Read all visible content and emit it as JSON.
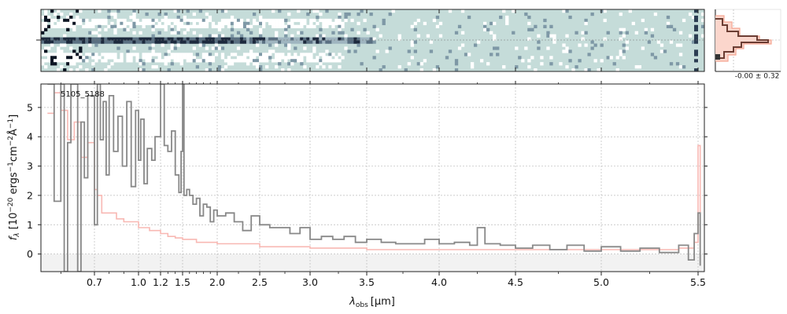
{
  "chart_data": {
    "type": "line",
    "object_label": "5105_5188",
    "xlabel_main": "λ",
    "xlabel_sub": "obs",
    "xlabel_unit": "[μm]",
    "ylabel": "f_λ [10^-20 ergs^-1cm^-2Å^-1]",
    "ylabel_parts": {
      "f": "f",
      "lambda": "λ",
      "open": " [10",
      "exp1": "−20",
      "ergs": " ergs",
      "exp2": "−1",
      "cm": "cm",
      "exp3": "−2",
      "ang": "Å",
      "exp4": "−1",
      "close": "]"
    },
    "x_tick_values": [
      0.7,
      1.0,
      1.2,
      1.5,
      2.0,
      2.5,
      3.0,
      3.5,
      4.0,
      4.5,
      5.0,
      5.5
    ],
    "x_tick_labels": [
      "0.7",
      "1.0",
      "1.2",
      "1.5",
      "2.0",
      "2.5",
      "3.0",
      "3.5",
      "4.0",
      "4.5",
      "5.0",
      "5.5"
    ],
    "y_ticks": [
      0,
      1,
      2,
      3,
      4,
      5
    ],
    "ylim": [
      -0.6,
      5.8
    ],
    "xlim": [
      0.55,
      5.53
    ],
    "x_scale": "nonlinear (compressed below ~1.5 μm)",
    "grid": true,
    "series": [
      {
        "color": "#888888",
        "points": [
          [
            0.56,
            5.8
          ],
          [
            0.58,
            1.8
          ],
          [
            0.6,
            5.8
          ],
          [
            0.61,
            -0.6
          ],
          [
            0.62,
            3.8
          ],
          [
            0.63,
            5.8
          ],
          [
            0.65,
            -0.6
          ],
          [
            0.66,
            4.5
          ],
          [
            0.67,
            2.6
          ],
          [
            0.68,
            5.4
          ],
          [
            0.7,
            1.0
          ],
          [
            0.72,
            5.8
          ],
          [
            0.74,
            3.9
          ],
          [
            0.76,
            5.2
          ],
          [
            0.78,
            2.7
          ],
          [
            0.8,
            5.4
          ],
          [
            0.83,
            3.5
          ],
          [
            0.86,
            4.7
          ],
          [
            0.89,
            3.0
          ],
          [
            0.92,
            5.2
          ],
          [
            0.95,
            2.3
          ],
          [
            0.98,
            4.9
          ],
          [
            1.0,
            3.2
          ],
          [
            1.02,
            4.6
          ],
          [
            1.05,
            2.4
          ],
          [
            1.08,
            3.6
          ],
          [
            1.12,
            3.2
          ],
          [
            1.15,
            4.0
          ],
          [
            1.2,
            5.8
          ],
          [
            1.25,
            3.7
          ],
          [
            1.3,
            3.5
          ],
          [
            1.35,
            4.2
          ],
          [
            1.4,
            2.7
          ],
          [
            1.45,
            2.1
          ],
          [
            1.48,
            3.5
          ],
          [
            1.5,
            5.8
          ],
          [
            1.52,
            2.0
          ],
          [
            1.56,
            2.2
          ],
          [
            1.6,
            2.0
          ],
          [
            1.65,
            1.7
          ],
          [
            1.7,
            1.9
          ],
          [
            1.75,
            1.3
          ],
          [
            1.8,
            1.7
          ],
          [
            1.85,
            1.6
          ],
          [
            1.9,
            1.1
          ],
          [
            1.95,
            1.5
          ],
          [
            2.0,
            1.3
          ],
          [
            2.1,
            1.4
          ],
          [
            2.2,
            1.1
          ],
          [
            2.3,
            0.8
          ],
          [
            2.4,
            1.3
          ],
          [
            2.5,
            1.0
          ],
          [
            2.6,
            0.9
          ],
          [
            2.7,
            0.9
          ],
          [
            2.8,
            0.7
          ],
          [
            2.9,
            0.9
          ],
          [
            3.0,
            0.5
          ],
          [
            3.1,
            0.6
          ],
          [
            3.2,
            0.5
          ],
          [
            3.3,
            0.6
          ],
          [
            3.4,
            0.4
          ],
          [
            3.5,
            0.5
          ],
          [
            3.6,
            0.4
          ],
          [
            3.7,
            0.35
          ],
          [
            3.8,
            0.35
          ],
          [
            3.9,
            0.5
          ],
          [
            4.0,
            0.35
          ],
          [
            4.1,
            0.4
          ],
          [
            4.2,
            0.3
          ],
          [
            4.25,
            0.9
          ],
          [
            4.3,
            0.35
          ],
          [
            4.4,
            0.3
          ],
          [
            4.5,
            0.2
          ],
          [
            4.6,
            0.3
          ],
          [
            4.7,
            0.15
          ],
          [
            4.8,
            0.3
          ],
          [
            4.9,
            0.1
          ],
          [
            5.0,
            0.25
          ],
          [
            5.1,
            0.1
          ],
          [
            5.2,
            0.2
          ],
          [
            5.3,
            0.05
          ],
          [
            5.4,
            0.3
          ],
          [
            5.45,
            -0.2
          ],
          [
            5.48,
            0.7
          ],
          [
            5.5,
            1.4
          ],
          [
            5.51,
            -0.4
          ]
        ]
      },
      {
        "color": "#f8b8b3",
        "points": [
          [
            0.56,
            4.8
          ],
          [
            0.58,
            5.5
          ],
          [
            0.6,
            4.9
          ],
          [
            0.62,
            3.9
          ],
          [
            0.64,
            4.5
          ],
          [
            0.66,
            3.3
          ],
          [
            0.68,
            3.8
          ],
          [
            0.7,
            2.2
          ],
          [
            0.72,
            2.0
          ],
          [
            0.75,
            1.4
          ],
          [
            0.8,
            1.4
          ],
          [
            0.85,
            1.2
          ],
          [
            0.9,
            1.1
          ],
          [
            1.0,
            0.9
          ],
          [
            1.1,
            0.8
          ],
          [
            1.2,
            0.7
          ],
          [
            1.3,
            0.6
          ],
          [
            1.4,
            0.55
          ],
          [
            1.5,
            0.5
          ],
          [
            1.7,
            0.4
          ],
          [
            2.0,
            0.35
          ],
          [
            2.5,
            0.25
          ],
          [
            3.0,
            0.2
          ],
          [
            3.5,
            0.15
          ],
          [
            4.0,
            0.15
          ],
          [
            4.5,
            0.15
          ],
          [
            5.0,
            0.15
          ],
          [
            5.4,
            0.2
          ],
          [
            5.48,
            0.4
          ],
          [
            5.5,
            3.7
          ],
          [
            5.51,
            0.3
          ]
        ]
      }
    ],
    "side_panel": {
      "label": "-0.00 ± 0.32"
    }
  }
}
